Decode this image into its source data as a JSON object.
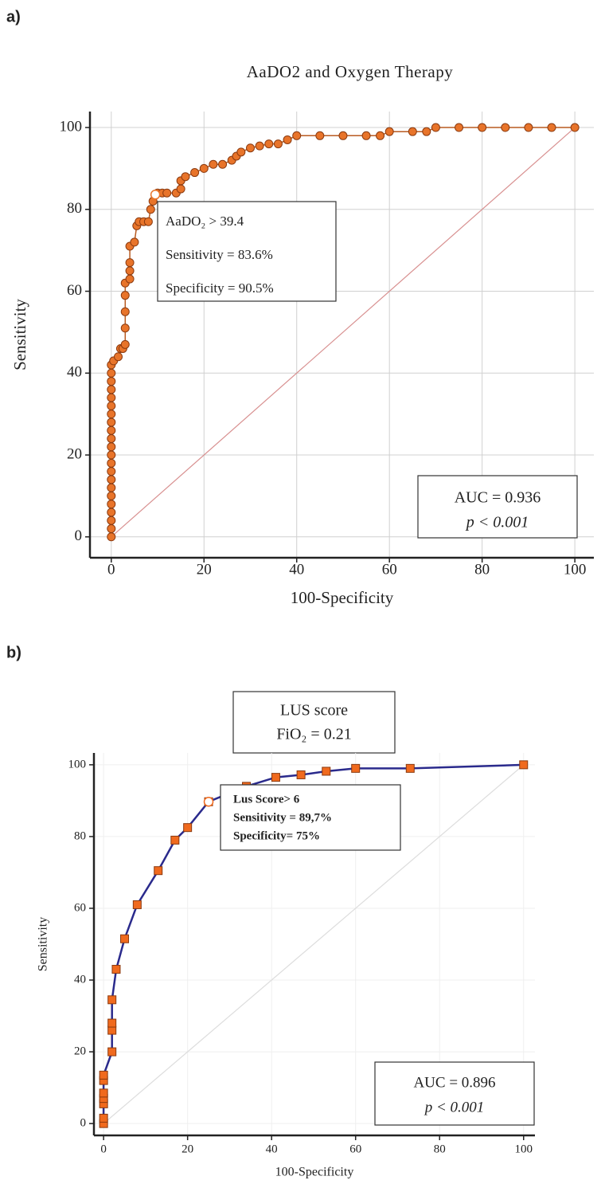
{
  "chart_data": [
    {
      "type": "line",
      "panel": "a)",
      "title": "AaDO2 and Oxygen Therapy",
      "x_label": "100-Specificity",
      "y_label": "Sensitivity",
      "x": [
        0,
        0,
        0,
        0,
        0,
        0,
        0,
        0,
        0,
        0,
        0,
        0,
        0,
        0,
        0,
        0,
        0,
        0,
        0,
        0,
        0,
        0,
        0.5,
        1.5,
        2,
        2.5,
        3,
        3,
        3,
        3,
        3,
        4,
        4,
        4,
        4,
        5,
        5.5,
        6,
        7,
        8,
        8.5,
        9,
        10,
        11,
        12,
        14,
        15,
        15,
        16,
        18,
        20,
        22,
        24,
        26,
        27,
        28,
        30,
        32,
        34,
        36,
        38,
        40,
        45,
        50,
        55,
        58,
        60,
        65,
        68,
        70,
        75,
        80,
        85,
        90,
        95,
        100
      ],
      "values": [
        0,
        2,
        4,
        6,
        8,
        10,
        12,
        14,
        16,
        18,
        20,
        22,
        24,
        26,
        28,
        30,
        32,
        34,
        36,
        38,
        40,
        42,
        43,
        44,
        46,
        46,
        47,
        51,
        55,
        59,
        62,
        63,
        65,
        67,
        71,
        72,
        76,
        77,
        77,
        77,
        80,
        82,
        84,
        84,
        84,
        84,
        85,
        87,
        88,
        89,
        90,
        91,
        91,
        92,
        93,
        94,
        95,
        95.5,
        96,
        96,
        97,
        98,
        98,
        98,
        98,
        98,
        99,
        99,
        99,
        100,
        100,
        100,
        100,
        100,
        100,
        100
      ],
      "criterion_point": {
        "x": 9.5,
        "y": 83.6
      },
      "line_color": "#b85a20",
      "color": "#e8742a",
      "marker": "circle",
      "diagonal_color": "#d89090",
      "xlim": [
        -4.6,
        104.1
      ],
      "ylim": [
        -5.1,
        103.9
      ],
      "xticks": [
        0,
        20,
        40,
        60,
        80,
        100
      ],
      "yticks": [
        0,
        20,
        40,
        60,
        80,
        100
      ],
      "grid": true,
      "annotations": [
        {
          "lines": [
            "AaDO₂ > 39.4",
            "Sensitivity = 83.6%",
            "Specificity = 90.5%"
          ]
        },
        {
          "lines": [
            "AUC = 0.936",
            "p < 0.001"
          ]
        }
      ]
    },
    {
      "type": "line",
      "panel": "b)",
      "title": "LUS score",
      "subtitle": "FiO₂ = 0.21",
      "x_label": "100-Specificity",
      "y_label": "Sensitivity",
      "x": [
        0,
        0,
        0,
        0,
        0,
        0,
        0,
        2,
        2,
        2,
        2,
        3,
        5,
        8,
        13,
        17,
        20,
        25,
        34,
        41,
        47,
        53,
        60,
        73,
        100
      ],
      "values": [
        0,
        1.5,
        5.5,
        7,
        8.5,
        12,
        13.5,
        20,
        26,
        28,
        34.5,
        43,
        51.5,
        61,
        70.5,
        79,
        82.5,
        89.7,
        94,
        96.5,
        97.2,
        98.2,
        99,
        99,
        100
      ],
      "criterion_point": {
        "x": 25,
        "y": 89.7
      },
      "line_color": "#2a2a8c",
      "color": "#f06a1e",
      "marker": "square",
      "diagonal_color": "#dddddd",
      "xlim": [
        -2.3,
        102.7
      ],
      "ylim": [
        -3.3,
        103.3
      ],
      "xticks": [
        0,
        20,
        40,
        60,
        80,
        100
      ],
      "yticks": [
        0,
        20,
        40,
        60,
        80,
        100
      ],
      "grid": true,
      "annotations": [
        {
          "lines": [
            "Lus Score> 6",
            "Sensitivity = 89,7%",
            "Specificity= 75%"
          ]
        },
        {
          "lines": [
            "AUC = 0.896",
            "p < 0.001"
          ]
        }
      ]
    }
  ]
}
